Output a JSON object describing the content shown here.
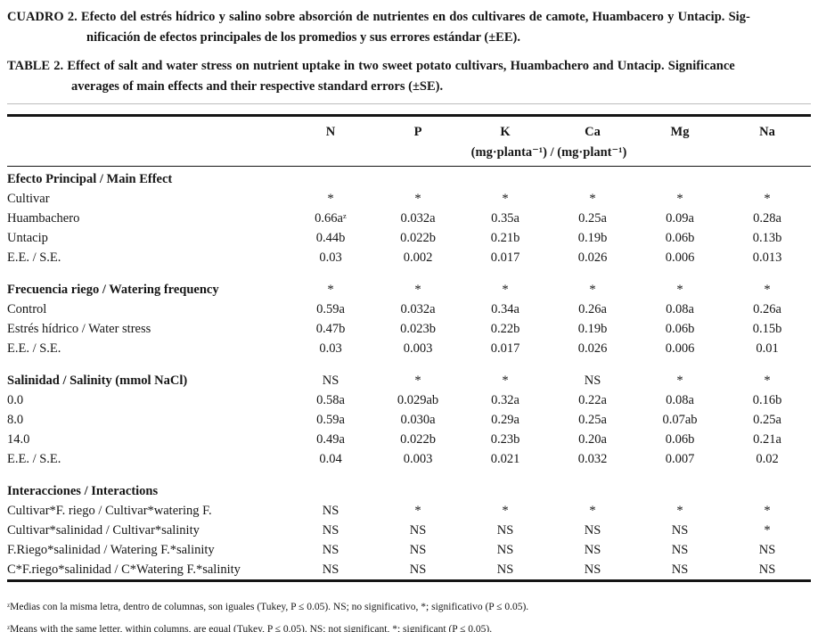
{
  "page": {
    "background": "#ffffff",
    "text_color": "#161616",
    "rule_color": "#151515"
  },
  "captions": [
    {
      "label": "CUADRO 2.",
      "lines": [
        "Efecto del estrés hídrico y salino sobre absorción de nutrientes en dos cultivares de camote, Huambacero y Untacip. Sig-",
        "nificación de efectos principales de los promedios y sus errores estándar (±EE)."
      ]
    },
    {
      "label": "TABLE 2.",
      "lines": [
        "Effect of salt and water stress on nutrient uptake in two sweet potato cultivars, Huambachero and Untacip. Significance",
        "averages of main effects and their respective standard errors (±SE)."
      ]
    }
  ],
  "table": {
    "columns": [
      "N",
      "P",
      "K",
      "Ca",
      "Mg",
      "Na"
    ],
    "units": "(mg·planta⁻¹) / (mg·plant⁻¹)",
    "sections": [
      {
        "header": "Efecto Principal / Main Effect",
        "header_values": [],
        "rows": [
          {
            "label": "Cultivar",
            "values": [
              "*",
              "*",
              "*",
              "*",
              "*",
              "*"
            ]
          },
          {
            "label": "Huambachero",
            "values": [
              "0.66aᶻ",
              "0.032a",
              "0.35a",
              "0.25a",
              "0.09a",
              "0.28a"
            ]
          },
          {
            "label": "Untacip",
            "values": [
              "0.44b",
              "0.022b",
              "0.21b",
              "0.19b",
              "0.06b",
              "0.13b"
            ]
          },
          {
            "label": "E.E. / S.E.",
            "values": [
              "0.03",
              "0.002",
              "0.017",
              "0.026",
              "0.006",
              "0.013"
            ]
          }
        ]
      },
      {
        "header": "Frecuencia riego / Watering frequency",
        "header_values": [
          "*",
          "*",
          "*",
          "*",
          "*",
          "*"
        ],
        "rows": [
          {
            "label": "Control",
            "values": [
              "0.59a",
              "0.032a",
              "0.34a",
              "0.26a",
              "0.08a",
              "0.26a"
            ]
          },
          {
            "label": "Estrés hídrico / Water stress",
            "values": [
              "0.47b",
              "0.023b",
              "0.22b",
              "0.19b",
              "0.06b",
              "0.15b"
            ]
          },
          {
            "label": "E.E. / S.E.",
            "values": [
              "0.03",
              "0.003",
              "0.017",
              "0.026",
              "0.006",
              "0.01"
            ]
          }
        ]
      },
      {
        "header": "Salinidad / Salinity (mmol NaCl)",
        "header_values": [
          "NS",
          "*",
          "*",
          "NS",
          "*",
          "*"
        ],
        "rows": [
          {
            "label": "0.0",
            "values": [
              "0.58a",
              "0.029ab",
              "0.32a",
              "0.22a",
              "0.08a",
              "0.16b"
            ]
          },
          {
            "label": "8.0",
            "values": [
              "0.59a",
              "0.030a",
              "0.29a",
              "0.25a",
              "0.07ab",
              "0.25a"
            ]
          },
          {
            "label": "14.0",
            "values": [
              "0.49a",
              "0.022b",
              "0.23b",
              "0.20a",
              "0.06b",
              "0.21a"
            ]
          },
          {
            "label": "E.E. / S.E.",
            "values": [
              "0.04",
              "0.003",
              "0.021",
              "0.032",
              "0.007",
              "0.02"
            ]
          }
        ]
      },
      {
        "header": "Interacciones / Interactions",
        "header_values": [],
        "rows": [
          {
            "label": "Cultivar*F. riego / Cultivar*watering F.",
            "values": [
              "NS",
              "*",
              "*",
              "*",
              "*",
              "*"
            ]
          },
          {
            "label": "Cultivar*salinidad / Cultivar*salinity",
            "values": [
              "NS",
              "NS",
              "NS",
              "NS",
              "NS",
              "*"
            ]
          },
          {
            "label": "F.Riego*salinidad / Watering F.*salinity",
            "values": [
              "NS",
              "NS",
              "NS",
              "NS",
              "NS",
              "NS"
            ]
          },
          {
            "label": "C*F.riego*salinidad / C*Watering F.*salinity",
            "values": [
              "NS",
              "NS",
              "NS",
              "NS",
              "NS",
              "NS"
            ]
          }
        ]
      }
    ]
  },
  "footnotes": [
    "ᶻMedias con la misma letra, dentro de columnas, son iguales (Tukey, P ≤ 0.05). NS; no significativo, *; significativo (P ≤ 0.05).",
    "ᶻMeans with the same letter, within columns, are equal (Tukey, P ≤ 0.05). NS; not significant, *; significant (P ≤ 0.05)."
  ]
}
